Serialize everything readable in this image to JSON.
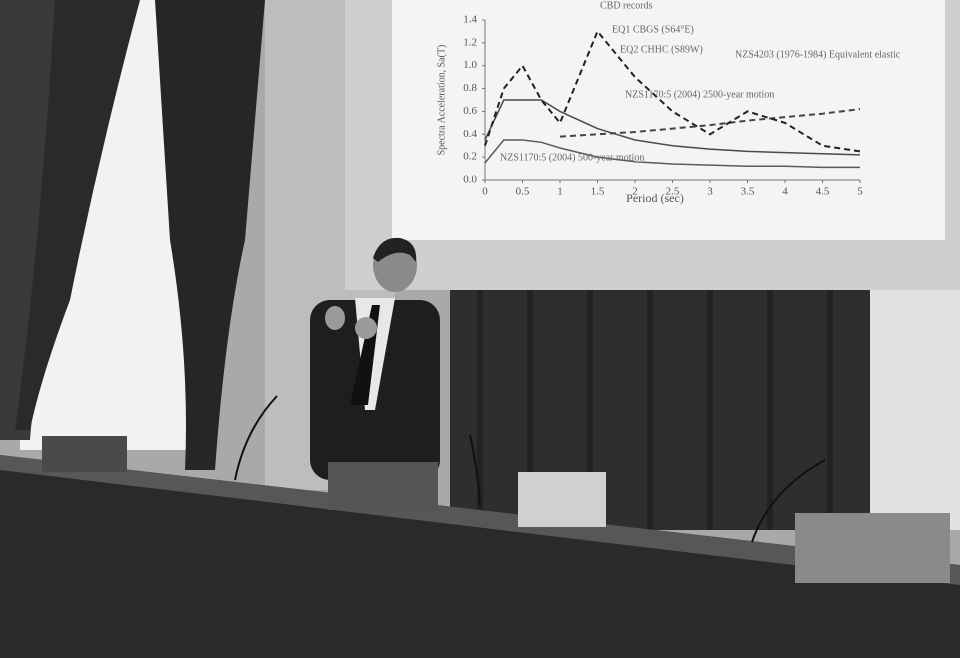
{
  "chart_data": {
    "type": "line",
    "x_label": "Period (sec)",
    "y_label": "Spectra Acceleration, Sa(T)",
    "x": [
      0,
      0.25,
      0.5,
      0.75,
      1,
      1.5,
      2,
      2.5,
      3,
      3.5,
      4,
      4.5,
      5
    ],
    "xlim": [
      0,
      5
    ],
    "ylim": [
      0,
      1.4
    ],
    "xticks": [
      0,
      0.5,
      1,
      1.5,
      2,
      2.5,
      3,
      3.5,
      4,
      4.5,
      5
    ],
    "yticks": [
      {
        "value": 0,
        "label": "0.0"
      },
      0.2,
      0.4,
      0.6,
      0.8,
      {
        "value": 1,
        "label": "1.0"
      },
      1.2,
      1.4
    ],
    "series": [
      {
        "name": "NZS1170:5 (2004) 2500-year motion",
        "color": "#4a4a4a",
        "dashed": false,
        "values": [
          0.35,
          0.7,
          0.7,
          0.7,
          0.6,
          0.45,
          0.35,
          0.3,
          0.27,
          0.25,
          0.24,
          0.23,
          0.22
        ]
      },
      {
        "name": "NZS1170:5 (2004) 500-year motion",
        "color": "#5a5a5a",
        "dashed": false,
        "values": [
          0.15,
          0.35,
          0.35,
          0.33,
          0.28,
          0.2,
          0.16,
          0.14,
          0.13,
          0.12,
          0.12,
          0.11,
          0.11
        ]
      },
      {
        "name": "NZS4203 (1976-1984) Equivalent elastic",
        "color": "#444444",
        "dashed": true,
        "values": [
          null,
          null,
          null,
          null,
          0.38,
          0.4,
          0.42,
          0.45,
          0.48,
          0.52,
          0.55,
          0.58,
          0.62
        ]
      },
      {
        "name": "EQ2 CHHC (S89W)",
        "color": "#222222",
        "dashed": true,
        "values": [
          0.3,
          0.8,
          1.0,
          0.7,
          0.5,
          1.3,
          0.9,
          0.6,
          0.4,
          0.6,
          0.5,
          0.3,
          0.25
        ]
      }
    ],
    "annotations": [
      "CBD records",
      "EQ1 CBGS (S64°E)"
    ]
  }
}
